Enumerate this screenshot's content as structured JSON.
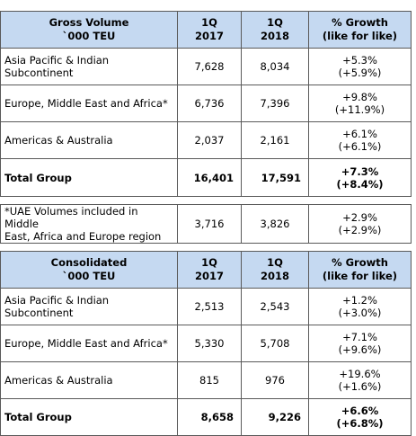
{
  "gross": {
    "header": {
      "label_line1": "Gross Volume",
      "label_line2": "`000 TEU",
      "col2_line1": "1Q",
      "col2_line2": "2017",
      "col3_line1": "1Q",
      "col3_line2": "2018",
      "col4_line1": "% Growth",
      "col4_line2": "(like for like)"
    },
    "rows": [
      {
        "label": "Asia Pacific & Indian Subcontinent",
        "q2017": "7,628",
        "q2018": "8,034",
        "growth": "+5.3%",
        "growth_lfl": "(+5.9%)"
      },
      {
        "label": "Europe, Middle East and Africa*",
        "q2017": "6,736",
        "q2018": "7,396",
        "growth": "+9.8%",
        "growth_lfl": "(+11.9%)"
      },
      {
        "label": "Americas & Australia",
        "q2017": "2,037",
        "q2018": "2,161",
        "growth": "+6.1%",
        "growth_lfl": "(+6.1%)"
      }
    ],
    "total": {
      "label": "Total Group",
      "q2017": "16,401",
      "q2018": "17,591",
      "growth": "+7.3%",
      "growth_lfl": "(+8.4%)"
    }
  },
  "uae": {
    "label_line1": "*UAE Volumes included in Middle",
    "label_line2": "East, Africa and Europe region",
    "q2017": "3,716",
    "q2018": "3,826",
    "growth": "+2.9%",
    "growth_lfl": "(+2.9%)"
  },
  "consolidated": {
    "header": {
      "label_line1": "Consolidated",
      "label_line2": "`000 TEU",
      "col2_line1": "1Q",
      "col2_line2": "2017",
      "col3_line1": "1Q",
      "col3_line2": "2018",
      "col4_line1": "% Growth",
      "col4_line2": "(like for like)"
    },
    "rows": [
      {
        "label": "Asia Pacific & Indian Subcontinent",
        "q2017": "2,513",
        "q2018": "2,543",
        "growth": "+1.2%",
        "growth_lfl": "(+3.0%)"
      },
      {
        "label": "Europe, Middle East and Africa*",
        "q2017": "5,330",
        "q2018": "5,708",
        "growth": "+7.1%",
        "growth_lfl": "(+9.6%)"
      },
      {
        "label": "Americas & Australia",
        "q2017": "815",
        "q2018": "976",
        "growth": "+19.6%",
        "growth_lfl": "(+1.6%)"
      }
    ],
    "total": {
      "label": "Total Group",
      "q2017": "8,658",
      "q2018": "9,226",
      "growth": "+6.6%",
      "growth_lfl": "(+6.8%)"
    }
  }
}
